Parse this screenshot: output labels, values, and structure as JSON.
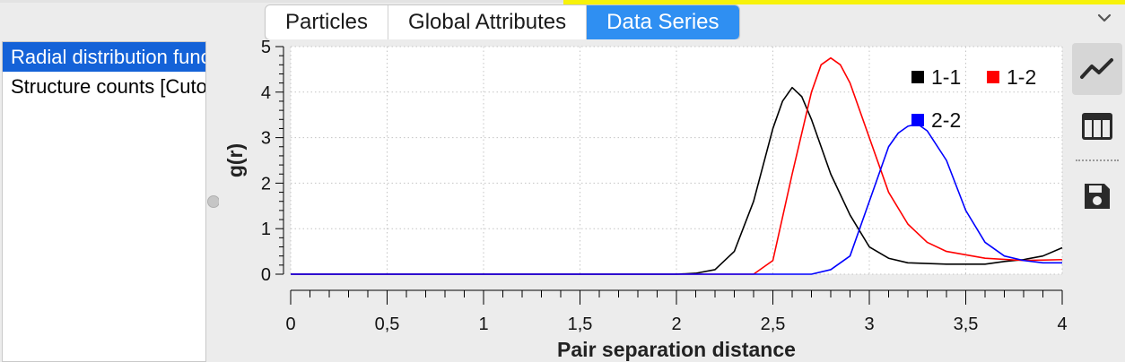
{
  "tabs": [
    {
      "label": "Particles",
      "active": false
    },
    {
      "label": "Global Attributes",
      "active": false
    },
    {
      "label": "Data Series",
      "active": true
    }
  ],
  "sidebar": {
    "items": [
      {
        "label": "Radial distribution function",
        "selected": true
      },
      {
        "label": "Structure counts [Cutoff]",
        "selected": false
      }
    ]
  },
  "toolbar": {
    "buttons": [
      {
        "icon": "line-chart-icon",
        "active": true
      },
      {
        "icon": "table-icon",
        "active": false
      },
      {
        "icon": "save-icon",
        "active": false
      }
    ]
  },
  "chart_data": {
    "type": "line",
    "xlabel": "Pair separation distance",
    "ylabel": "g(r)",
    "xlim": [
      0,
      4
    ],
    "ylim": [
      0,
      5
    ],
    "xticks": [
      "0",
      "0,5",
      "1",
      "1,5",
      "2",
      "2,5",
      "3",
      "3,5",
      "4"
    ],
    "yticks": [
      "0",
      "1",
      "2",
      "3",
      "4",
      "5"
    ],
    "grid": true,
    "legend_position": "top-right",
    "series": [
      {
        "name": "1-1",
        "color": "#000000",
        "x": [
          0,
          2.0,
          2.1,
          2.2,
          2.3,
          2.4,
          2.5,
          2.55,
          2.6,
          2.65,
          2.7,
          2.8,
          2.9,
          3.0,
          3.1,
          3.2,
          3.4,
          3.6,
          3.7,
          3.8,
          3.9,
          4.0
        ],
        "y": [
          0,
          0,
          0.02,
          0.1,
          0.5,
          1.6,
          3.2,
          3.8,
          4.1,
          3.9,
          3.4,
          2.2,
          1.3,
          0.6,
          0.35,
          0.25,
          0.22,
          0.22,
          0.28,
          0.32,
          0.4,
          0.58
        ]
      },
      {
        "name": "1-2",
        "color": "#ff0000",
        "x": [
          0,
          2.4,
          2.5,
          2.6,
          2.7,
          2.75,
          2.8,
          2.85,
          2.9,
          3.0,
          3.1,
          3.2,
          3.3,
          3.4,
          3.6,
          3.8,
          4.0
        ],
        "y": [
          0,
          0,
          0.3,
          2.2,
          4.0,
          4.6,
          4.75,
          4.6,
          4.2,
          3.0,
          1.8,
          1.1,
          0.7,
          0.5,
          0.35,
          0.3,
          0.32
        ]
      },
      {
        "name": "2-2",
        "color": "#0000ff",
        "x": [
          0,
          2.7,
          2.8,
          2.9,
          3.0,
          3.1,
          3.15,
          3.2,
          3.25,
          3.3,
          3.4,
          3.5,
          3.6,
          3.7,
          3.8,
          3.9,
          4.0
        ],
        "y": [
          0,
          0,
          0.1,
          0.4,
          1.6,
          2.8,
          3.1,
          3.25,
          3.3,
          3.15,
          2.5,
          1.4,
          0.7,
          0.4,
          0.3,
          0.25,
          0.25
        ]
      }
    ]
  }
}
